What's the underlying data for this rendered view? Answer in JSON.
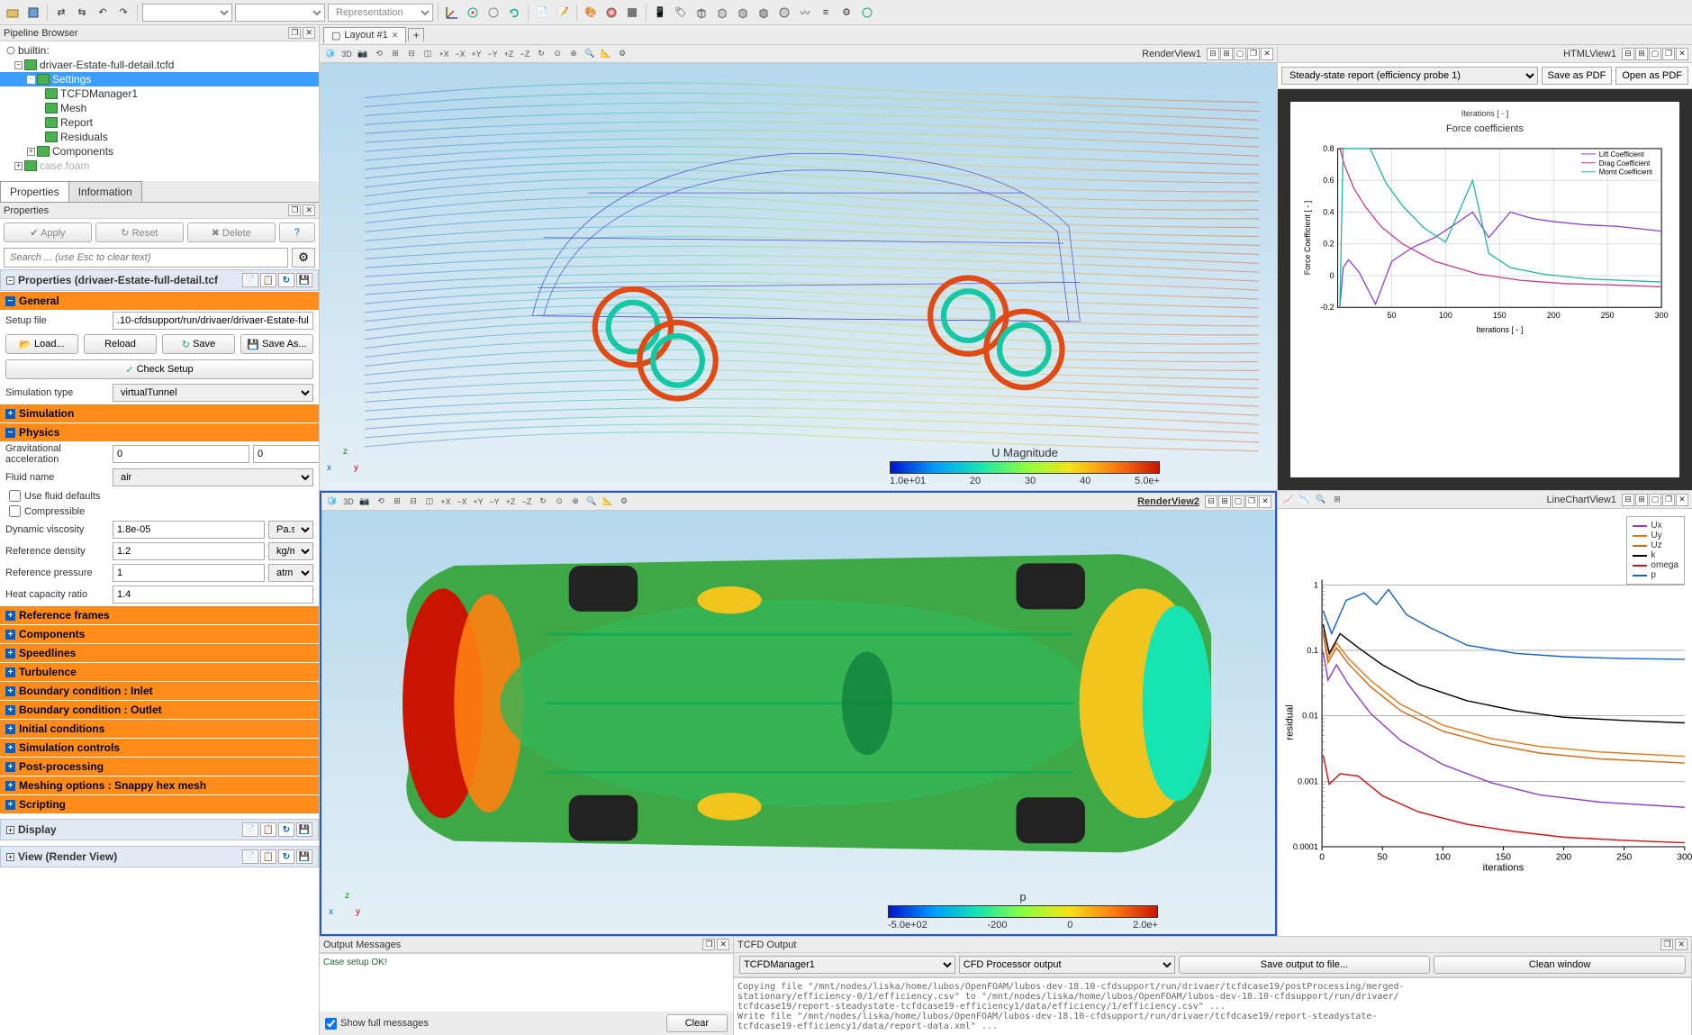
{
  "toolbar": {
    "representation_placeholder": "Representation"
  },
  "pipeline": {
    "title": "Pipeline Browser",
    "builtin": "builtin:",
    "root": "drivaer-Estate-full-detail.tcfd",
    "settings": "Settings",
    "children": [
      "TCFDManager1",
      "Mesh",
      "Report",
      "Residuals"
    ],
    "components": "Components",
    "casefoam": "case.foam"
  },
  "props_tabs": {
    "properties": "Properties",
    "information": "Information"
  },
  "props": {
    "header": "Properties",
    "apply": "Apply",
    "reset": "Reset",
    "delete": "Delete",
    "help": "?",
    "search_placeholder": "Search ... (use Esc to clear text)",
    "section_title": "Properties (drivaer-Estate-full-detail.tcf",
    "general": "General",
    "setup_file_label": "Setup file",
    "setup_file_value": ".10-cfdsupport/run/drivaer/drivaer-Estate-full-detail.tcfd",
    "load": "Load...",
    "reload": "Reload",
    "save": "Save",
    "saveas": "Save As...",
    "check_setup": "Check Setup",
    "sim_type_label": "Simulation type",
    "sim_type_value": "virtualTunnel",
    "simulation": "Simulation",
    "physics": "Physics",
    "grav_label": "Gravitational acceleration",
    "grav_x": "0",
    "grav_y": "0",
    "grav_z": "0",
    "fluid_label": "Fluid name",
    "fluid_value": "air",
    "use_fluid_defaults": "Use fluid defaults",
    "compressible": "Compressible",
    "dyn_visc_label": "Dynamic viscosity",
    "dyn_visc_value": "1.8e-05",
    "dyn_visc_unit": "Pa.s",
    "ref_dens_label": "Reference density",
    "ref_dens_value": "1.2",
    "ref_dens_unit": "kg/m^3",
    "ref_press_label": "Reference pressure",
    "ref_press_value": "1",
    "ref_press_unit": "atm",
    "heat_cap_label": "Heat capacity ratio",
    "heat_cap_value": "1.4",
    "sections": [
      "Reference frames",
      "Components",
      "Speedlines",
      "Turbulence",
      "Boundary condition : Inlet",
      "Boundary condition : Outlet",
      "Initial conditions",
      "Simulation controls",
      "Post-processing",
      "Meshing options : Snappy hex mesh",
      "Scripting"
    ],
    "display": "Display",
    "view_render": "View (Render View)"
  },
  "layout": {
    "tab": "Layout #1"
  },
  "views": {
    "rv1": "RenderView1",
    "rv2": "RenderView2",
    "html": "HTMLView1",
    "line": "LineChartView1"
  },
  "colorbar1": {
    "title": "U Magnitude",
    "ticks": [
      "1.0e+01",
      "20",
      "30",
      "40",
      "5.0e+"
    ],
    "gradient": [
      "#0014cc",
      "#009cff",
      "#17e4b1",
      "#8aff42",
      "#f1e419",
      "#ff7f11",
      "#c81400"
    ]
  },
  "colorbar2": {
    "title": "p",
    "ticks": [
      "-5.0e+02",
      "-200",
      "0",
      "2.0e+"
    ],
    "gradient": [
      "#0014cc",
      "#009cff",
      "#17e4b1",
      "#8aff42",
      "#f1e419",
      "#ff7f11",
      "#c81400"
    ]
  },
  "report": {
    "dropdown": "Steady-state report (efficiency probe 1)",
    "save_pdf": "Save as PDF",
    "open_pdf": "Open as PDF",
    "iterations_top": "Iterations [ - ]",
    "chart_title": "Force coefficients",
    "ylabel": "Force Coefficient [ - ]",
    "xlabel": "Iterations [ - ]",
    "legend": [
      "Lift Coefficient",
      "Drag Coefficient",
      "Momt Coefficient"
    ],
    "legend_colors": [
      "#8a3fd1",
      "#c43a8c",
      "#1fb5a0"
    ],
    "xlim": [
      0,
      300
    ],
    "xticks": [
      50,
      100,
      150,
      200,
      250,
      300
    ],
    "ylim": [
      -0.2,
      0.8
    ],
    "yticks": [
      -0.2,
      0,
      0.2,
      0.4,
      0.6,
      0.8
    ],
    "series": {
      "lift": {
        "color": "#8a3fd1",
        "pts": [
          [
            2,
            -0.2
          ],
          [
            5,
            0.05
          ],
          [
            10,
            0.1
          ],
          [
            20,
            0.02
          ],
          [
            35,
            -0.18
          ],
          [
            50,
            0.09
          ],
          [
            70,
            0.18
          ],
          [
            90,
            0.24
          ],
          [
            110,
            0.33
          ],
          [
            125,
            0.4
          ],
          [
            140,
            0.24
          ],
          [
            160,
            0.4
          ],
          [
            180,
            0.36
          ],
          [
            200,
            0.34
          ],
          [
            230,
            0.32
          ],
          [
            260,
            0.31
          ],
          [
            300,
            0.28
          ]
        ]
      },
      "drag": {
        "color": "#c43a8c",
        "pts": [
          [
            2,
            0.8
          ],
          [
            6,
            0.7
          ],
          [
            15,
            0.55
          ],
          [
            25,
            0.44
          ],
          [
            40,
            0.31
          ],
          [
            60,
            0.2
          ],
          [
            90,
            0.09
          ],
          [
            130,
            0.01
          ],
          [
            170,
            -0.03
          ],
          [
            210,
            -0.05
          ],
          [
            260,
            -0.06
          ],
          [
            300,
            -0.07
          ]
        ]
      },
      "momt": {
        "color": "#1fb5a0",
        "pts": [
          [
            2,
            -0.2
          ],
          [
            5,
            0.8
          ],
          [
            15,
            0.8
          ],
          [
            30,
            0.8
          ],
          [
            45,
            0.58
          ],
          [
            60,
            0.44
          ],
          [
            80,
            0.3
          ],
          [
            100,
            0.21
          ],
          [
            125,
            0.6
          ],
          [
            140,
            0.14
          ],
          [
            160,
            0.05
          ],
          [
            190,
            0.01
          ],
          [
            230,
            -0.02
          ],
          [
            300,
            -0.04
          ]
        ]
      }
    }
  },
  "linechart": {
    "xlabel": "iterations",
    "ylabel": "residual",
    "xlim": [
      0,
      300
    ],
    "xticks": [
      0,
      50,
      100,
      150,
      200,
      250,
      300
    ],
    "yticks_log": [
      0.0001,
      0.001,
      0.01,
      0.1,
      1
    ],
    "legend": [
      {
        "name": "Ux",
        "color": "#8a3fd1"
      },
      {
        "name": "Uy",
        "color": "#e07a1f"
      },
      {
        "name": "Uz",
        "color": "#d46a14"
      },
      {
        "name": "k",
        "color": "#000000"
      },
      {
        "name": "omega",
        "color": "#d01313"
      },
      {
        "name": "p",
        "color": "#1663c7"
      }
    ],
    "series": {
      "p": {
        "color": "#1663c7",
        "pts": [
          [
            1,
            0.4
          ],
          [
            8,
            0.18
          ],
          [
            20,
            0.58
          ],
          [
            35,
            0.75
          ],
          [
            45,
            0.5
          ],
          [
            55,
            0.85
          ],
          [
            70,
            0.35
          ],
          [
            90,
            0.22
          ],
          [
            120,
            0.12
          ],
          [
            160,
            0.09
          ],
          [
            200,
            0.08
          ],
          [
            250,
            0.075
          ],
          [
            300,
            0.073
          ]
        ]
      },
      "k": {
        "color": "#000000",
        "pts": [
          [
            1,
            0.25
          ],
          [
            6,
            0.09
          ],
          [
            15,
            0.18
          ],
          [
            30,
            0.11
          ],
          [
            50,
            0.06
          ],
          [
            80,
            0.03
          ],
          [
            120,
            0.017
          ],
          [
            160,
            0.012
          ],
          [
            200,
            0.0095
          ],
          [
            250,
            0.0085
          ],
          [
            300,
            0.0078
          ]
        ]
      },
      "Uy": {
        "color": "#e07a1f",
        "pts": [
          [
            1,
            0.2
          ],
          [
            5,
            0.075
          ],
          [
            12,
            0.13
          ],
          [
            22,
            0.075
          ],
          [
            40,
            0.035
          ],
          [
            65,
            0.015
          ],
          [
            100,
            0.0072
          ],
          [
            140,
            0.0045
          ],
          [
            180,
            0.0034
          ],
          [
            230,
            0.0028
          ],
          [
            300,
            0.0024
          ]
        ]
      },
      "Uz": {
        "color": "#d46a14",
        "pts": [
          [
            1,
            0.18
          ],
          [
            5,
            0.065
          ],
          [
            12,
            0.11
          ],
          [
            22,
            0.062
          ],
          [
            40,
            0.028
          ],
          [
            65,
            0.012
          ],
          [
            100,
            0.0058
          ],
          [
            140,
            0.0037
          ],
          [
            180,
            0.0027
          ],
          [
            230,
            0.0022
          ],
          [
            300,
            0.0019
          ]
        ]
      },
      "Ux": {
        "color": "#8a3fd1",
        "pts": [
          [
            1,
            0.095
          ],
          [
            5,
            0.035
          ],
          [
            12,
            0.06
          ],
          [
            22,
            0.03
          ],
          [
            40,
            0.011
          ],
          [
            65,
            0.0042
          ],
          [
            100,
            0.0018
          ],
          [
            140,
            0.00095
          ],
          [
            180,
            0.00062
          ],
          [
            230,
            0.00048
          ],
          [
            300,
            0.0004
          ]
        ]
      },
      "omega": {
        "color": "#d01313",
        "pts": [
          [
            1,
            0.0025
          ],
          [
            6,
            0.0009
          ],
          [
            15,
            0.0013
          ],
          [
            30,
            0.0012
          ],
          [
            50,
            0.0006
          ],
          [
            80,
            0.00034
          ],
          [
            120,
            0.00022
          ],
          [
            160,
            0.00017
          ],
          [
            200,
            0.00014
          ],
          [
            250,
            0.000125
          ],
          [
            300,
            0.000115
          ]
        ]
      }
    }
  },
  "output": {
    "messages_title": "Output Messages",
    "tcfd_title": "TCFD Output",
    "case_ok": "Case setup OK!",
    "show_full": "Show full messages",
    "clear": "Clear",
    "manager_combo": "TCFDManager1",
    "proc_combo": "CFD Processor output",
    "save_output": "Save output to file...",
    "clean_window": "Clean window",
    "log": [
      "Copying file \"/mnt/nodes/liska/home/lubos/OpenFOAM/lubos-dev-18.10-cfdsupport/run/drivaer/tcfdcase19/postProcessing/merged-",
      "stationary/efficiency-0/1/efficiency.csv\" to \"/mnt/nodes/liska/home/lubos/OpenFOAM/lubos-dev-18.10-cfdsupport/run/drivaer/",
      "tcfdcase19/report-steadystate-tcfdcase19-efficiency1/data/efficiency/1/efficiency.csv\" ...",
      "Write file \"/mnt/nodes/liska/home/lubos/OpenFOAM/lubos-dev-18.10-cfdsupport/run/drivaer/tcfdcase19/report-steadystate-",
      "tcfdcase19-efficiency1/data/report-data.xml\" ..."
    ]
  }
}
